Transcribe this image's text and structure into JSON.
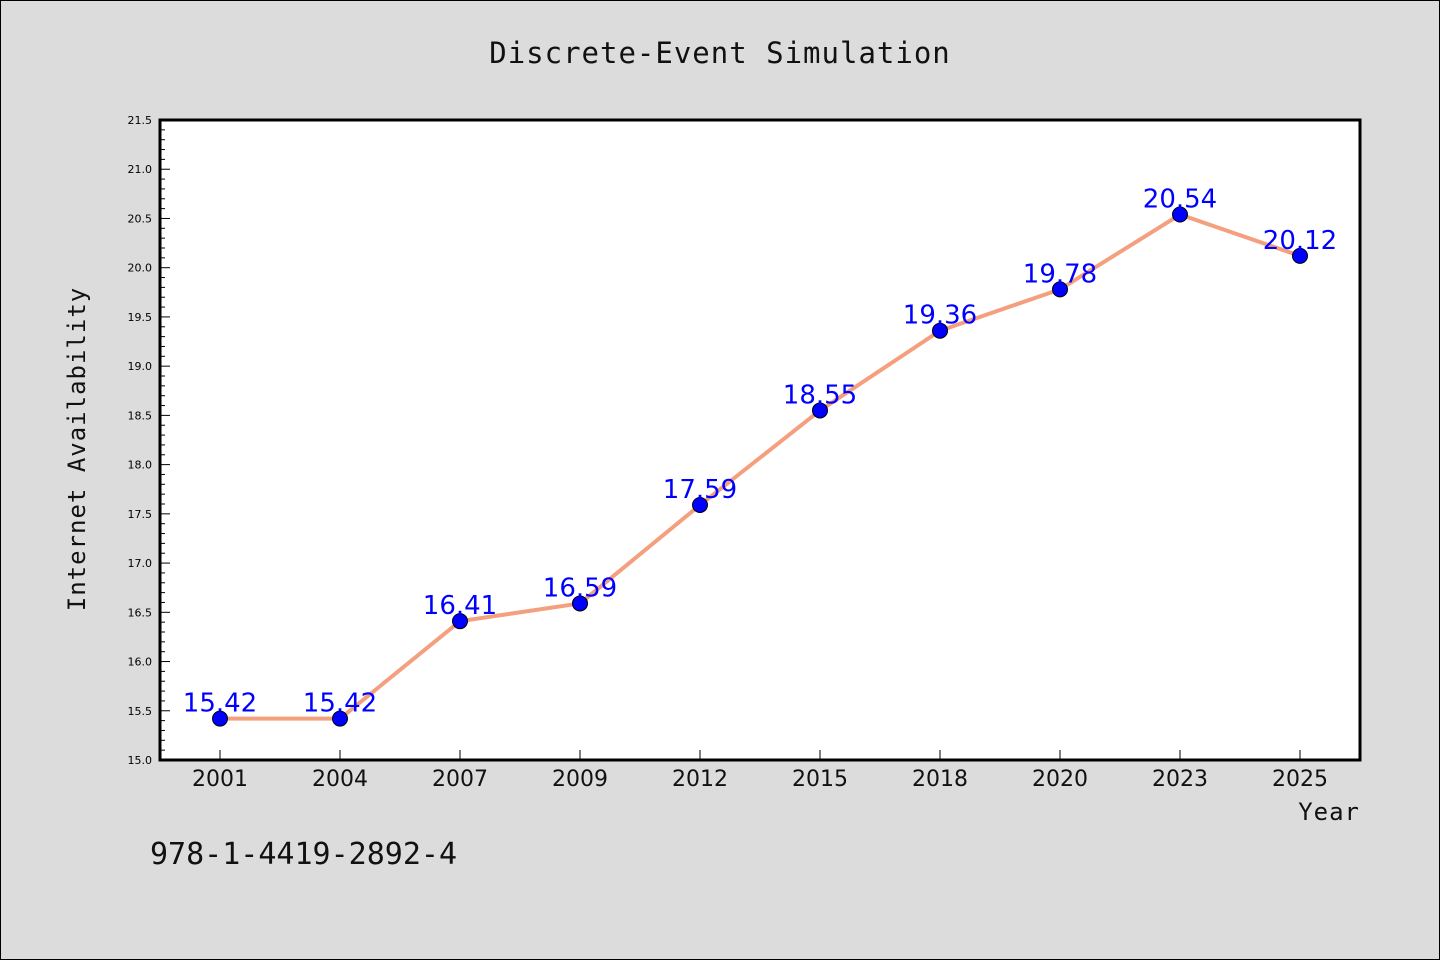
{
  "chart_data": {
    "type": "line",
    "title": "Discrete-Event Simulation",
    "xlabel": "Year",
    "ylabel": "Internet Availability",
    "categories": [
      "2001",
      "2004",
      "2007",
      "2009",
      "2012",
      "2015",
      "2018",
      "2020",
      "2023",
      "2025"
    ],
    "series": [
      {
        "values": [
          15.42,
          15.42,
          16.41,
          16.59,
          17.59,
          18.55,
          19.36,
          19.78,
          20.54,
          20.12
        ],
        "line_color": "#f4a07f",
        "marker_color": "#0000ff"
      }
    ],
    "data_labels": [
      "15.42",
      "15.42",
      "16.41",
      "16.59",
      "17.59",
      "18.55",
      "19.36",
      "19.78",
      "20.54",
      "20.12"
    ],
    "ylim": [
      15.0,
      21.5
    ],
    "yticks": [
      "15.0",
      "15.5",
      "16.0",
      "16.5",
      "17.0",
      "17.5",
      "18.0",
      "18.5",
      "19.0",
      "19.5",
      "20.0",
      "20.5",
      "21.0",
      "21.5"
    ],
    "grid": false,
    "background": "#dcdcdc",
    "plot_background": "#ffffff"
  },
  "footer": {
    "isbn": "978-1-4419-2892-4"
  }
}
